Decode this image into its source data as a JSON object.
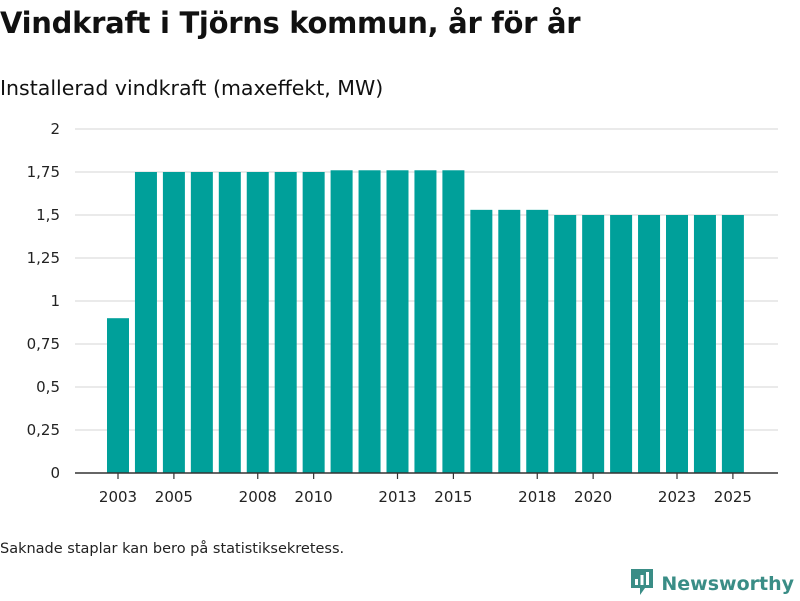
{
  "header": {
    "title": "Vindkraft i Tjörns kommun, år för år",
    "subtitle": "Installerad vindkraft (maxeffekt, MW)"
  },
  "footer": {
    "note": "Saknade staplar kan bero på statistiksekretess.",
    "brand": "Newsworthy",
    "brand_icon": "newsworthy-logo-icon"
  },
  "colors": {
    "bar": "#00a09a",
    "grid": "#dddddd",
    "axis": "#333333",
    "brand": "#3a8d86"
  },
  "chart_data": {
    "type": "bar",
    "title": "Vindkraft i Tjörns kommun, år för år",
    "subtitle": "Installerad vindkraft (maxeffekt, MW)",
    "xlabel": "",
    "ylabel": "",
    "categories": [
      "2003",
      "2004",
      "2005",
      "2006",
      "2007",
      "2008",
      "2009",
      "2010",
      "2011",
      "2012",
      "2013",
      "2014",
      "2015",
      "2016",
      "2017",
      "2018",
      "2019",
      "2020",
      "2021",
      "2022",
      "2023",
      "2024",
      "2025"
    ],
    "values": [
      0.9,
      1.75,
      1.75,
      1.75,
      1.75,
      1.75,
      1.75,
      1.75,
      1.76,
      1.76,
      1.76,
      1.76,
      1.76,
      1.53,
      1.53,
      1.53,
      1.5,
      1.5,
      1.5,
      1.5,
      1.5,
      1.5,
      1.5
    ],
    "ylim": [
      0,
      2
    ],
    "yticks": [
      0,
      0.25,
      0.5,
      0.75,
      1,
      1.25,
      1.5,
      1.75,
      2
    ],
    "ytick_labels": [
      "0",
      "0,25",
      "0,5",
      "0,75",
      "1",
      "1,25",
      "1,5",
      "1,75",
      "2"
    ],
    "xtick_labels": [
      "2003",
      "2005",
      "2008",
      "2010",
      "2013",
      "2015",
      "2018",
      "2020",
      "2023",
      "2025"
    ],
    "grid": true,
    "legend": false
  }
}
